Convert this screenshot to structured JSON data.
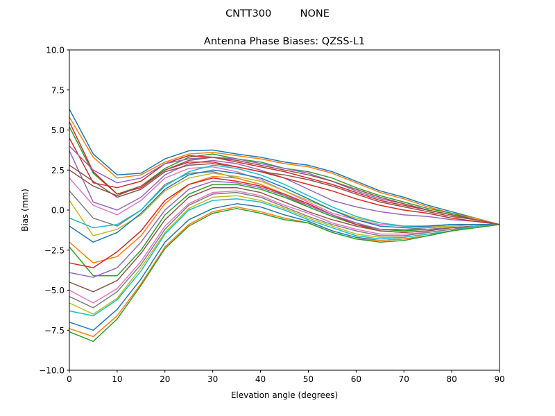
{
  "chart_data": {
    "type": "line",
    "suptitle": "CNTT300         NONE",
    "title": "Antenna Phase Biases: QZSS-L1",
    "xlabel": "Elevation angle (degrees)",
    "ylabel": "Bias (mm)",
    "xlim": [
      0,
      90
    ],
    "ylim": [
      -10,
      10
    ],
    "grid": false,
    "xticks": [
      0,
      10,
      20,
      30,
      40,
      50,
      60,
      70,
      80,
      90
    ],
    "xtick_labels": [
      "0",
      "10",
      "20",
      "30",
      "40",
      "50",
      "60",
      "70",
      "80",
      "90"
    ],
    "yticks": [
      -10,
      -7.5,
      -5,
      -2.5,
      0,
      2.5,
      5,
      7.5,
      10
    ],
    "ytick_labels": [
      "−10.0",
      "−7.5",
      "−5.0",
      "−2.5",
      "0.0",
      "2.5",
      "5.0",
      "7.5",
      "10.0"
    ],
    "colors": [
      "#1f77b4",
      "#ff7f0e",
      "#2ca02c",
      "#d62728",
      "#9467bd",
      "#8c564b",
      "#e377c2",
      "#7f7f7f",
      "#bcbd22",
      "#17becf"
    ],
    "x": [
      0,
      5,
      10,
      15,
      20,
      25,
      30,
      35,
      40,
      45,
      50,
      55,
      60,
      65,
      70,
      75,
      80,
      85,
      90
    ],
    "series": [
      {
        "values": [
          6.3,
          3.5,
          2.2,
          2.3,
          3.2,
          3.7,
          3.75,
          3.5,
          3.3,
          3.0,
          2.8,
          2.4,
          1.8,
          1.2,
          0.8,
          0.3,
          -0.1,
          -0.5,
          -0.9
        ]
      },
      {
        "values": [
          5.8,
          3.3,
          2.0,
          2.2,
          3.0,
          3.5,
          3.6,
          3.4,
          3.2,
          2.9,
          2.7,
          2.3,
          1.7,
          1.1,
          0.7,
          0.2,
          -0.2,
          -0.5,
          -0.9
        ]
      },
      {
        "values": [
          5.2,
          2.3,
          1.0,
          1.5,
          2.6,
          3.3,
          3.5,
          3.2,
          3.0,
          2.6,
          2.4,
          2.0,
          1.4,
          0.9,
          0.5,
          0.1,
          -0.2,
          -0.6,
          -0.9
        ]
      },
      {
        "values": [
          4.5,
          1.7,
          1.4,
          1.8,
          2.9,
          3.4,
          3.3,
          3.0,
          2.7,
          2.4,
          2.0,
          1.6,
          1.1,
          0.6,
          0.3,
          0.0,
          -0.3,
          -0.6,
          -0.9
        ]
      },
      {
        "values": [
          3.7,
          0.5,
          0.0,
          0.8,
          2.2,
          2.9,
          3.1,
          2.9,
          2.5,
          2.0,
          1.3,
          0.6,
          0.2,
          -0.1,
          -0.3,
          -0.4,
          -0.6,
          -0.7,
          -0.9
        ]
      },
      {
        "values": [
          2.8,
          1.8,
          0.8,
          1.3,
          2.4,
          2.8,
          2.9,
          2.7,
          2.4,
          2.2,
          1.9,
          1.5,
          1.0,
          0.5,
          0.2,
          -0.1,
          -0.4,
          -0.6,
          -0.9
        ]
      },
      {
        "values": [
          2.0,
          0.3,
          -0.3,
          0.6,
          2.0,
          2.6,
          2.7,
          2.4,
          1.9,
          1.2,
          0.5,
          -0.2,
          -0.6,
          -0.9,
          -1.0,
          -1.0,
          -0.9,
          -0.9,
          -0.9
        ]
      },
      {
        "values": [
          1.2,
          -0.5,
          -1.0,
          0.0,
          1.6,
          2.3,
          2.4,
          2.0,
          1.6,
          0.9,
          0.2,
          -0.4,
          -0.9,
          -1.2,
          -1.2,
          -1.1,
          -1.0,
          -0.9,
          -0.9
        ]
      },
      {
        "values": [
          0.6,
          -1.6,
          -1.2,
          -0.3,
          1.2,
          2.0,
          2.3,
          2.1,
          1.8,
          1.2,
          0.6,
          0.0,
          -0.5,
          -0.8,
          -1.0,
          -1.0,
          -1.0,
          -0.9,
          -0.9
        ]
      },
      {
        "values": [
          -0.5,
          -1.1,
          -0.9,
          0.0,
          1.5,
          2.4,
          2.8,
          2.6,
          2.2,
          1.6,
          0.9,
          0.2,
          -0.4,
          -0.8,
          -1.0,
          -1.0,
          -0.9,
          -0.9,
          -0.9
        ]
      },
      {
        "values": [
          -1.0,
          -2.0,
          -1.4,
          -0.2,
          1.3,
          2.2,
          2.5,
          2.3,
          2.0,
          1.4,
          0.7,
          0.0,
          -0.6,
          -1.0,
          -1.1,
          -1.0,
          -0.9,
          -0.9,
          -0.9
        ]
      },
      {
        "values": [
          -2.0,
          -3.3,
          -2.9,
          -1.6,
          0.4,
          1.6,
          2.1,
          2.0,
          1.6,
          1.0,
          0.3,
          -0.3,
          -0.8,
          -1.2,
          -1.3,
          -1.2,
          -1.1,
          -1.0,
          -0.9
        ]
      },
      {
        "values": [
          -2.3,
          -4.1,
          -4.1,
          -2.5,
          -0.3,
          1.0,
          1.6,
          1.6,
          1.3,
          0.8,
          0.2,
          -0.4,
          -0.9,
          -1.2,
          -1.3,
          -1.2,
          -1.1,
          -1.0,
          -0.9
        ]
      },
      {
        "values": [
          -3.3,
          -3.6,
          -2.6,
          -1.3,
          0.6,
          1.6,
          2.0,
          1.8,
          1.5,
          1.0,
          0.4,
          -0.3,
          -0.9,
          -1.3,
          -1.4,
          -1.3,
          -1.1,
          -1.0,
          -0.9
        ]
      },
      {
        "values": [
          -3.9,
          -4.2,
          -3.6,
          -2.0,
          0.0,
          1.3,
          1.8,
          1.7,
          1.4,
          0.9,
          0.3,
          -0.3,
          -0.8,
          -1.2,
          -1.2,
          -1.2,
          -1.1,
          -1.0,
          -0.9
        ]
      },
      {
        "values": [
          -4.5,
          -5.1,
          -4.4,
          -2.7,
          -0.6,
          0.8,
          1.4,
          1.4,
          1.1,
          0.5,
          -0.1,
          -0.6,
          -1.0,
          -1.3,
          -1.4,
          -1.3,
          -1.1,
          -1.0,
          -0.9
        ]
      },
      {
        "values": [
          -5.0,
          -5.8,
          -4.9,
          -3.2,
          -1.0,
          0.4,
          1.1,
          1.2,
          0.9,
          0.3,
          -0.2,
          -0.8,
          -1.2,
          -1.5,
          -1.5,
          -1.4,
          -1.2,
          -1.0,
          -0.9
        ]
      },
      {
        "values": [
          -5.4,
          -6.1,
          -5.1,
          -3.4,
          -1.2,
          0.3,
          1.0,
          1.1,
          0.8,
          0.2,
          -0.4,
          -0.9,
          -1.3,
          -1.6,
          -1.6,
          -1.4,
          -1.2,
          -1.0,
          -0.9
        ]
      },
      {
        "values": [
          -5.8,
          -6.5,
          -5.5,
          -3.6,
          -1.4,
          0.1,
          0.8,
          0.9,
          0.6,
          0.1,
          -0.5,
          -1.0,
          -1.5,
          -1.7,
          -1.7,
          -1.5,
          -1.3,
          -1.0,
          -0.9
        ]
      },
      {
        "values": [
          -6.3,
          -6.6,
          -5.6,
          -3.8,
          -1.5,
          0.0,
          0.6,
          0.7,
          0.5,
          0.0,
          -0.6,
          -1.1,
          -1.6,
          -1.8,
          -1.7,
          -1.5,
          -1.3,
          -1.0,
          -0.9
        ]
      },
      {
        "values": [
          -7.0,
          -7.5,
          -6.2,
          -4.3,
          -2.0,
          -0.6,
          0.1,
          0.4,
          0.2,
          -0.3,
          -0.7,
          -1.3,
          -1.7,
          -1.9,
          -1.8,
          -1.6,
          -1.3,
          -1.1,
          -0.9
        ]
      },
      {
        "values": [
          -7.4,
          -7.9,
          -6.6,
          -4.6,
          -2.3,
          -0.9,
          -0.1,
          0.2,
          -0.1,
          -0.5,
          -0.8,
          -1.4,
          -1.8,
          -1.9,
          -1.8,
          -1.6,
          -1.3,
          -1.1,
          -0.9
        ]
      },
      {
        "values": [
          -7.6,
          -8.2,
          -6.8,
          -4.7,
          -2.4,
          -1.0,
          -0.2,
          0.1,
          -0.2,
          -0.6,
          -0.8,
          -1.4,
          -1.8,
          -2.0,
          -1.9,
          -1.6,
          -1.3,
          -1.1,
          -0.9
        ]
      },
      {
        "values": [
          5.5,
          2.4,
          1.0,
          1.4,
          2.5,
          3.0,
          3.0,
          2.7,
          2.4,
          2.0,
          1.6,
          1.2,
          0.7,
          0.3,
          0.0,
          -0.2,
          -0.5,
          -0.7,
          -0.9
        ]
      },
      {
        "values": [
          4.0,
          2.5,
          1.7,
          2.0,
          2.9,
          3.2,
          3.3,
          3.2,
          2.9,
          2.6,
          2.3,
          1.8,
          1.2,
          0.7,
          0.4,
          0.0,
          -0.3,
          -0.6,
          -0.9
        ]
      },
      {
        "values": [
          2.5,
          1.5,
          0.9,
          1.5,
          2.5,
          3.1,
          3.3,
          3.1,
          2.8,
          2.5,
          2.2,
          1.8,
          1.3,
          0.8,
          0.4,
          0.0,
          -0.3,
          -0.6,
          -0.9
        ]
      }
    ]
  }
}
